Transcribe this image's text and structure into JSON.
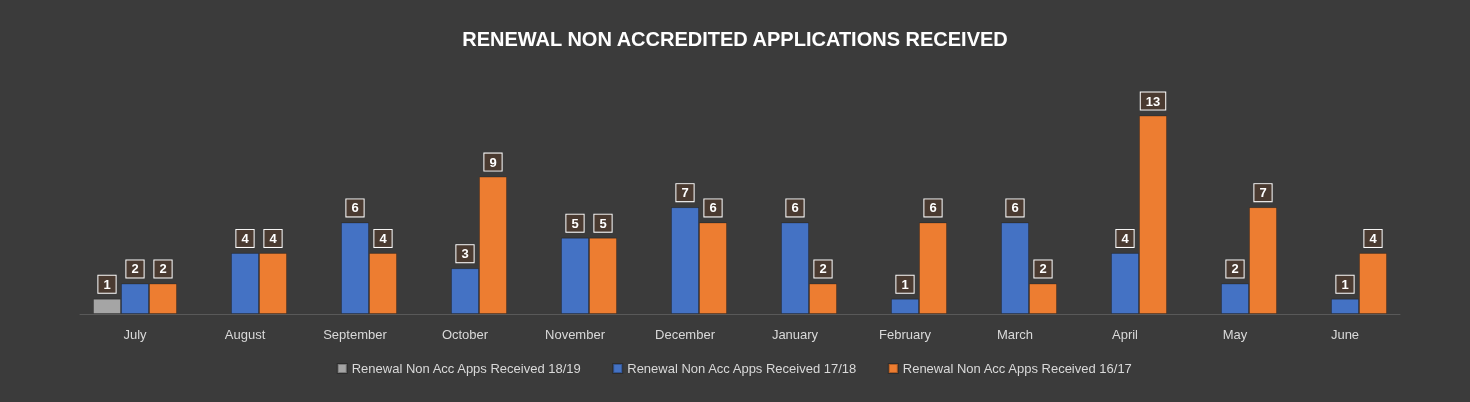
{
  "chart_data": {
    "type": "bar",
    "title": "RENEWAL NON ACCREDITED APPLICATIONS RECEIVED",
    "categories": [
      "July",
      "August",
      "September",
      "October",
      "November",
      "December",
      "January",
      "February",
      "March",
      "April",
      "May",
      "June"
    ],
    "series": [
      {
        "name": "Renewal Non Acc Apps Received 18/19",
        "color": "#a5a5a5",
        "values": [
          1,
          null,
          null,
          null,
          null,
          null,
          null,
          null,
          null,
          null,
          null,
          null
        ]
      },
      {
        "name": "Renewal Non Acc Apps Received 17/18",
        "color": "#4472c4",
        "values": [
          2,
          4,
          6,
          3,
          5,
          7,
          6,
          1,
          6,
          4,
          2,
          1
        ]
      },
      {
        "name": "Renewal Non Acc Apps Received 16/17",
        "color": "#ed7d31",
        "values": [
          2,
          4,
          4,
          9,
          5,
          6,
          2,
          6,
          2,
          13,
          7,
          4
        ]
      }
    ],
    "data_labels": true,
    "legend": "bottom"
  }
}
